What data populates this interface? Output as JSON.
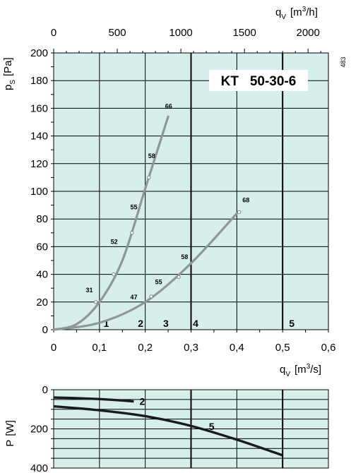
{
  "chart_data": [
    {
      "type": "line",
      "title": "KT   50-30-6",
      "code": "483",
      "xlabel": "qv [m3/s]",
      "xlabel_parts": {
        "q": "q",
        "sub": "V",
        "bracket_open": "[m",
        "sup": "3",
        "bracket_close": "/s]"
      },
      "top_xlabel": "qv [m3/h]",
      "top_xlabel_parts": {
        "q": "q",
        "sub": "V",
        "bracket_open": "[m",
        "sup": "3",
        "bracket_close": "/h]"
      },
      "ylabel": "pS [Pa]",
      "ylabel_parts": {
        "p": "p",
        "sub": "S",
        "bracket": "[Pa]"
      },
      "xlim": [
        0,
        0.6
      ],
      "ylim": [
        0,
        200
      ],
      "top_xlim": [
        0,
        2160
      ],
      "x_ticks": [
        "0",
        "0,1",
        "0,2",
        "0,3",
        "0,4",
        "0,5",
        "0,6"
      ],
      "x_tick_values": [
        0,
        0.1,
        0.2,
        0.3,
        0.4,
        0.5,
        0.6
      ],
      "y_ticks": [
        0,
        20,
        40,
        60,
        80,
        100,
        120,
        140,
        160,
        180,
        200
      ],
      "top_x_ticks": [
        "0",
        "500",
        "1000",
        "1500",
        "2000"
      ],
      "top_x_tick_values": [
        0,
        500,
        1000,
        1500,
        2000
      ],
      "zones": [
        {
          "label": "1",
          "x": 0.115
        },
        {
          "label": "2",
          "x": 0.19
        },
        {
          "label": "3",
          "x": 0.245
        },
        {
          "label": "4",
          "x": 0.31
        },
        {
          "label": "5",
          "x": 0.52
        }
      ],
      "bold_gridlines_x": [
        0.3,
        0.5
      ],
      "series": [
        {
          "points": [
            [
              0,
              0
            ],
            [
              0.05,
              4
            ],
            [
              0.1,
              20
            ],
            [
              0.15,
              50
            ],
            [
              0.2,
              102
            ],
            [
              0.25,
              154
            ]
          ],
          "markers": [
            {
              "x": 0.092,
              "y": 20,
              "label": "31"
            },
            {
              "x": 0.131,
              "y": 40,
              "label": ""
            },
            {
              "x": 0.171,
              "y": 70,
              "label": "52"
            },
            {
              "x": 0.208,
              "y": 110,
              "label": "58"
            }
          ],
          "annotations": [
            {
              "x": 0.078,
              "y": 27,
              "label": "31"
            },
            {
              "x": 0.132,
              "y": 62,
              "label": "52"
            },
            {
              "x": 0.175,
              "y": 87,
              "label": "55"
            },
            {
              "x": 0.214,
              "y": 124,
              "label": "58"
            },
            {
              "x": 0.251,
              "y": 160,
              "label": "66"
            }
          ]
        },
        {
          "points": [
            [
              0,
              0
            ],
            [
              0.1,
              5
            ],
            [
              0.2,
              20
            ],
            [
              0.3,
              48
            ],
            [
              0.4,
              84
            ]
          ],
          "markers": [
            {
              "x": 0.213,
              "y": 24,
              "label": ""
            },
            {
              "x": 0.273,
              "y": 38,
              "label": ""
            },
            {
              "x": 0.405,
              "y": 85,
              "label": ""
            }
          ],
          "annotations": [
            {
              "x": 0.175,
              "y": 22,
              "label": "47"
            },
            {
              "x": 0.229,
              "y": 33,
              "label": "55"
            },
            {
              "x": 0.286,
              "y": 51,
              "label": "58"
            },
            {
              "x": 0.42,
              "y": 92,
              "label": "68"
            }
          ]
        }
      ]
    },
    {
      "type": "line",
      "ylabel": "P [W]",
      "ylabel_parts": {
        "p": "P",
        "bracket": "[W]"
      },
      "xlim": [
        0,
        0.6
      ],
      "ylim": [
        0,
        400
      ],
      "y_inverted": true,
      "y_ticks": [
        0,
        200,
        400
      ],
      "bold_gridlines_x": [
        0.3,
        0.5
      ],
      "series": [
        {
          "name": "2",
          "points": [
            [
              0,
              40
            ],
            [
              0.05,
              43
            ],
            [
              0.1,
              48
            ],
            [
              0.15,
              55
            ],
            [
              0.175,
              60
            ]
          ]
        },
        {
          "name": "5",
          "points": [
            [
              0,
              85
            ],
            [
              0.1,
              105
            ],
            [
              0.2,
              135
            ],
            [
              0.3,
              185
            ],
            [
              0.4,
              255
            ],
            [
              0.5,
              335
            ]
          ]
        }
      ]
    }
  ]
}
